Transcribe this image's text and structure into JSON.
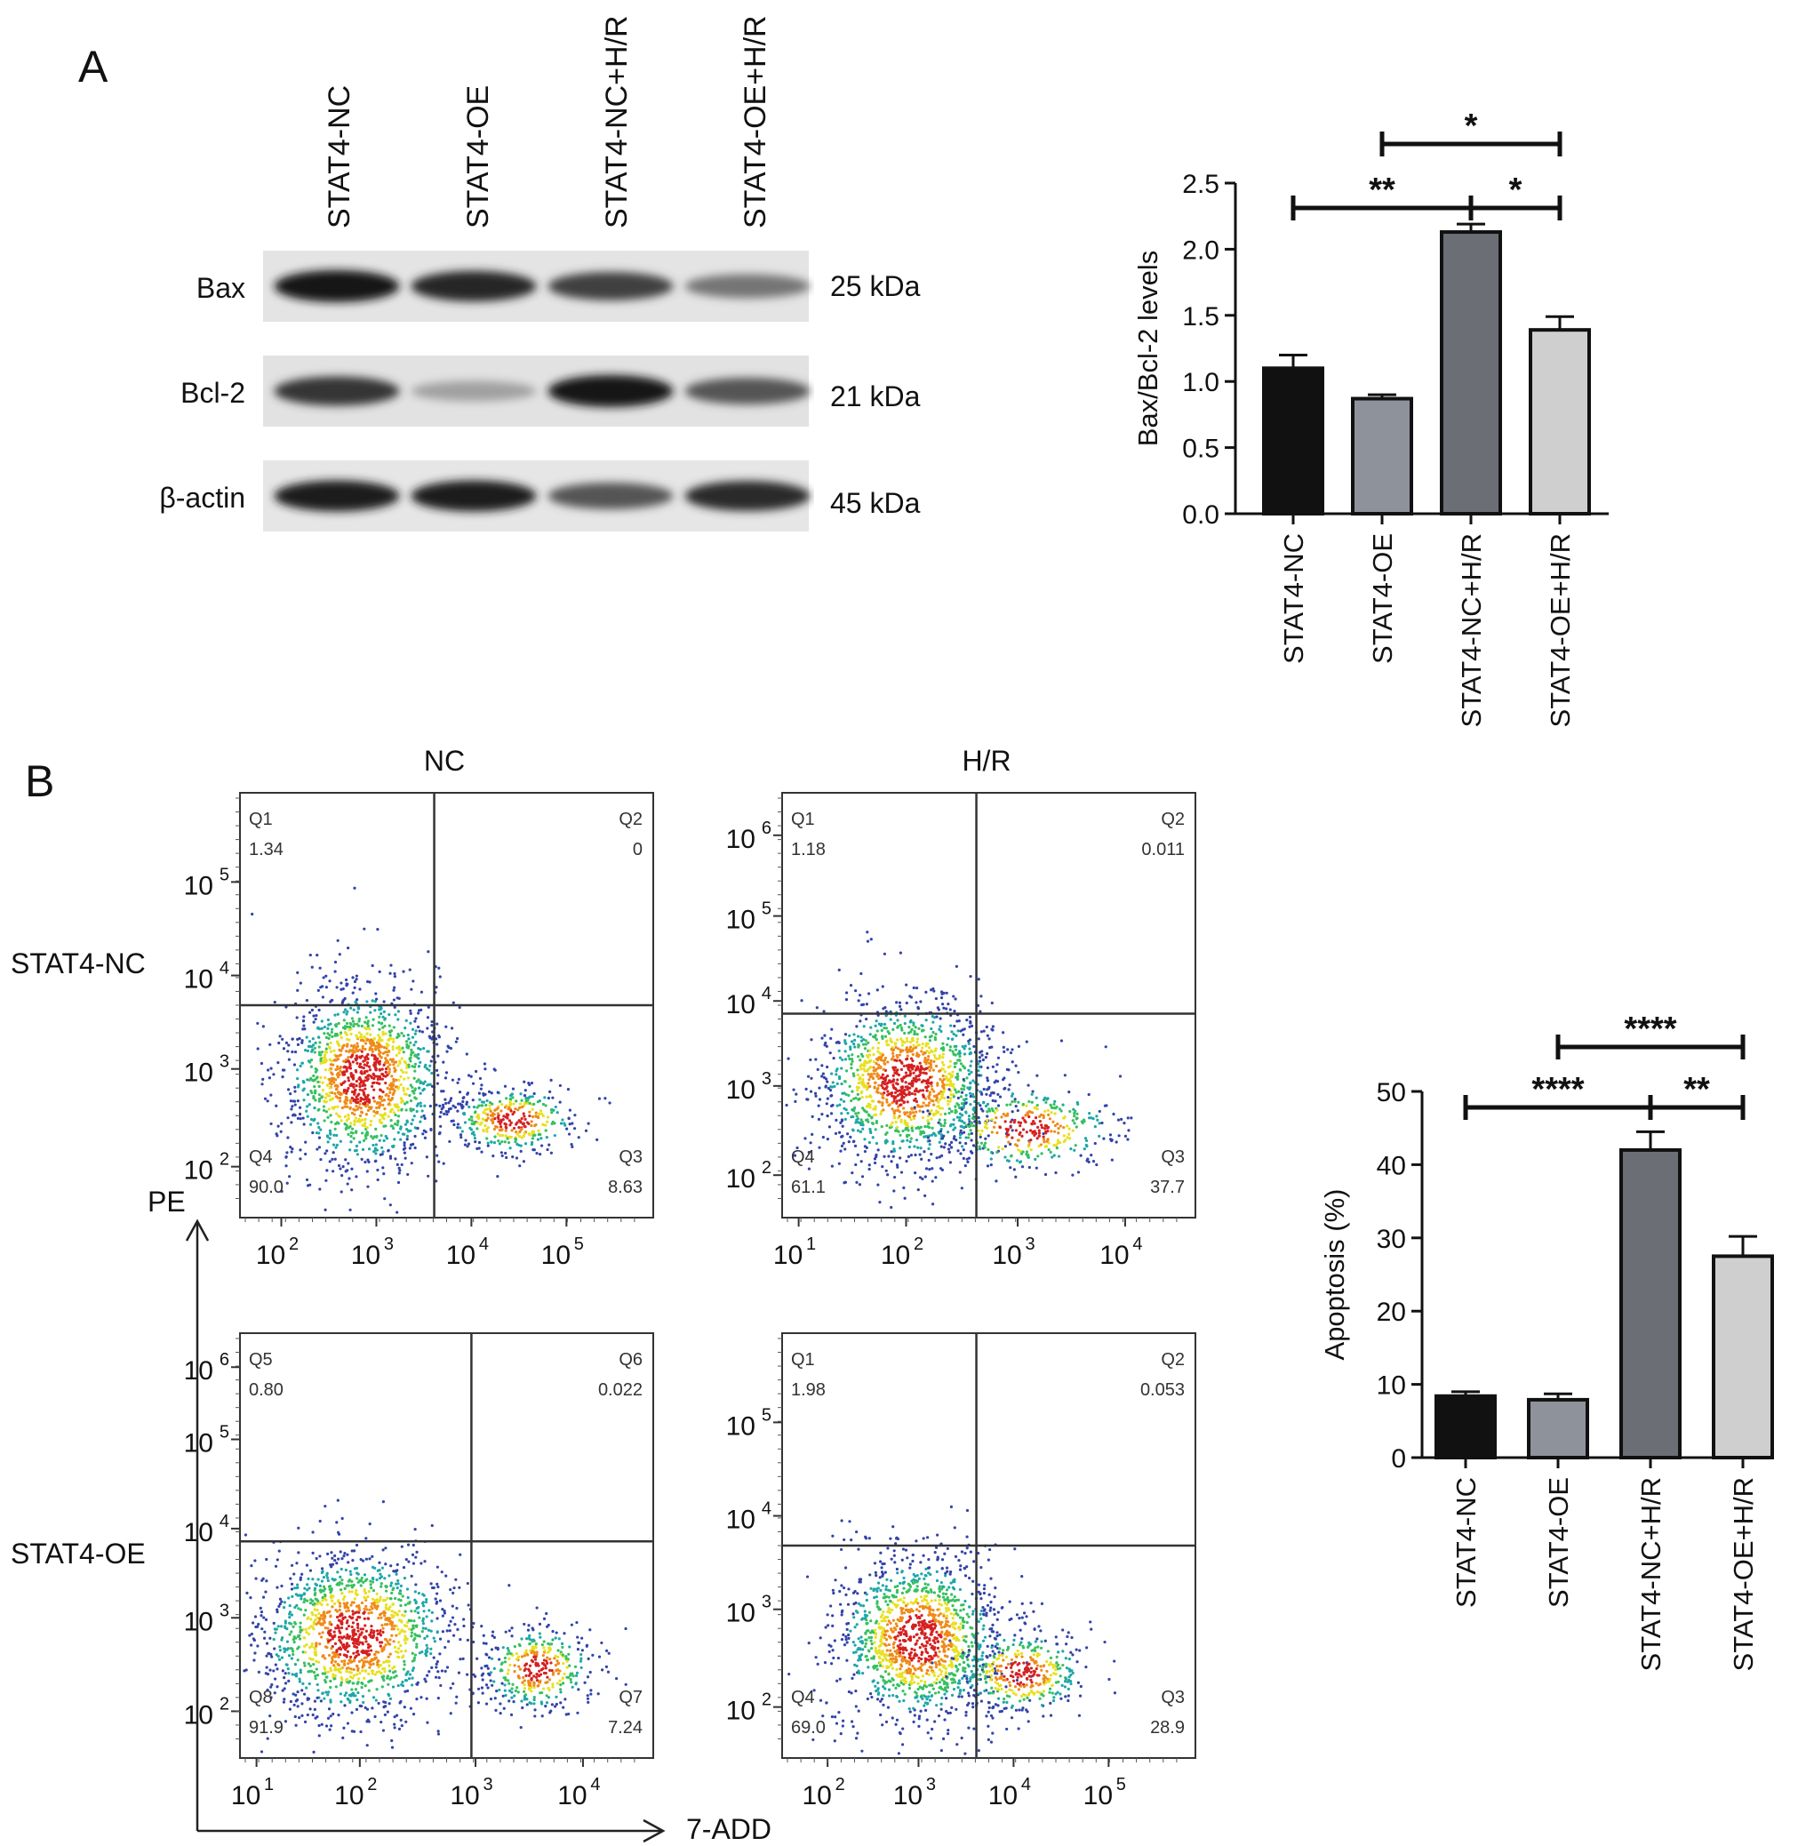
{
  "panelA": {
    "letter": "A",
    "lanes": [
      "STAT4-NC",
      "STAT4-OE",
      "STAT4-NC+H/R",
      "STAT4-OE+H/R"
    ],
    "blots": [
      {
        "name": "Bax",
        "kda": "25 kDa",
        "intensity": [
          1.0,
          0.92,
          0.8,
          0.55
        ]
      },
      {
        "name": "Bcl-2",
        "kda": "21 kDa",
        "intensity": [
          0.85,
          0.35,
          1.0,
          0.7
        ]
      },
      {
        "name": "β-actin",
        "kda": "45 kDa",
        "intensity": [
          0.95,
          0.95,
          0.7,
          0.9
        ]
      }
    ]
  },
  "panelB": {
    "letter": "B",
    "column_labels": [
      "NC",
      "H/R"
    ],
    "row_labels": [
      "STAT4-NC",
      "STAT4-OE"
    ],
    "y_axis_label": "PE",
    "x_axis_label": "7-ADD",
    "flow_plots": [
      {
        "quadrants": [
          {
            "name": "Q1",
            "value": "1.34"
          },
          {
            "name": "Q2",
            "value": "0"
          },
          {
            "name": "Q3",
            "value": "8.63"
          },
          {
            "name": "Q4",
            "value": "90.0"
          }
        ],
        "x_ticks": [
          "2",
          "3",
          "4",
          "5"
        ],
        "y_ticks": [
          "2",
          "3",
          "4",
          "5"
        ]
      },
      {
        "quadrants": [
          {
            "name": "Q1",
            "value": "1.18"
          },
          {
            "name": "Q2",
            "value": "0.011"
          },
          {
            "name": "Q3",
            "value": "37.7"
          },
          {
            "name": "Q4",
            "value": "61.1"
          }
        ],
        "x_ticks": [
          "1",
          "2",
          "3",
          "4"
        ],
        "y_ticks": [
          "2",
          "3",
          "4",
          "5",
          "6"
        ]
      },
      {
        "quadrants": [
          {
            "name": "Q5",
            "value": "0.80"
          },
          {
            "name": "Q6",
            "value": "0.022"
          },
          {
            "name": "Q7",
            "value": "7.24"
          },
          {
            "name": "Q8",
            "value": "91.9"
          }
        ],
        "x_ticks": [
          "1",
          "2",
          "3",
          "4"
        ],
        "y_ticks": [
          "2",
          "3",
          "4",
          "5",
          "6"
        ]
      },
      {
        "quadrants": [
          {
            "name": "Q1",
            "value": "1.98"
          },
          {
            "name": "Q2",
            "value": "0.053"
          },
          {
            "name": "Q3",
            "value": "28.9"
          },
          {
            "name": "Q4",
            "value": "69.0"
          }
        ],
        "x_ticks": [
          "2",
          "3",
          "4",
          "5"
        ],
        "y_ticks": [
          "2",
          "3",
          "4",
          "5"
        ]
      }
    ]
  },
  "chart_data": [
    {
      "type": "bar",
      "categories": [
        "STAT4-NC",
        "STAT4-OE",
        "STAT4-NC+H/R",
        "STAT4-OE+H/R"
      ],
      "values": [
        1.1,
        0.87,
        2.13,
        1.39
      ],
      "errors": [
        0.1,
        0.03,
        0.06,
        0.1
      ],
      "colors": [
        "#111111",
        "#8e929a",
        "#6b6e74",
        "#cfcfd0"
      ],
      "ylabel": "Bax/Bcl-2 levels",
      "ylim": [
        0,
        2.5
      ],
      "yticks": [
        "0.0",
        "0.5",
        "1.0",
        "1.5",
        "2.0",
        "2.5"
      ],
      "significance": [
        {
          "from": 0,
          "to": 2,
          "label": "**"
        },
        {
          "from": 2,
          "to": 3,
          "label": "*"
        },
        {
          "from": 1,
          "to": 3,
          "label": "*"
        }
      ]
    },
    {
      "type": "bar",
      "categories": [
        "STAT4-NC",
        "STAT4-OE",
        "STAT4-NC+H/R",
        "STAT4-OE+H/R"
      ],
      "values": [
        8.4,
        7.9,
        42.0,
        27.5
      ],
      "errors": [
        0.6,
        0.8,
        2.5,
        2.7
      ],
      "colors": [
        "#111111",
        "#8e929a",
        "#6b6e74",
        "#cfcfd0"
      ],
      "ylabel": "Apoptosis (%)",
      "ylim": [
        0,
        50
      ],
      "yticks": [
        "0",
        "10",
        "20",
        "30",
        "40",
        "50"
      ],
      "significance": [
        {
          "from": 0,
          "to": 2,
          "label": "****"
        },
        {
          "from": 2,
          "to": 3,
          "label": "**"
        },
        {
          "from": 1,
          "to": 3,
          "label": "****"
        }
      ]
    }
  ]
}
